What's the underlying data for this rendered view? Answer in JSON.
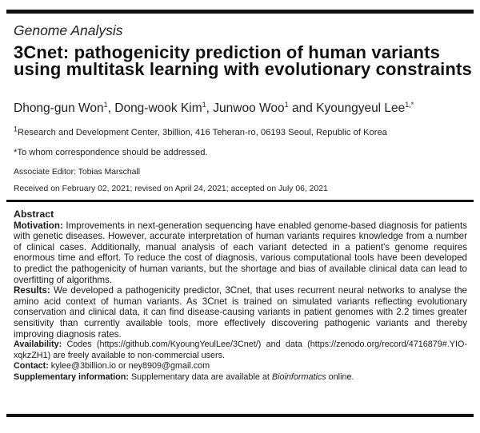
{
  "section_label": "Genome Analysis",
  "title": "3Cnet: pathogenicity prediction of human variants using multitask learning with evolutionary constraints",
  "authors": [
    {
      "name": "Dhong-gun Won",
      "sup": "1"
    },
    {
      "name": "Dong-wook Kim",
      "sup": "1"
    },
    {
      "name": "Junwoo Woo",
      "sup": "1"
    },
    {
      "name": "Kyoungyeul Lee",
      "sup": "1,*"
    }
  ],
  "author_sep": ", ",
  "author_and": " and ",
  "affiliation": {
    "sup": "1",
    "text": "Research and Development Center, 3billion, 416 Teheran-ro, 06193 Seoul, Republic of Korea"
  },
  "correspondence": "*To whom correspondence should be addressed.",
  "associate_editor": "Associate Editor: Tobias Marschall",
  "received": "Received on February 02, 2021; revised on April 24, 2021; accepted on July 06, 2021",
  "abstract": {
    "heading": "Abstract",
    "motivation_label": "Motivation:",
    "motivation": "Improvements in next-generation sequencing have enabled genome-based diagnosis for patients with genetic diseases. However, accurate interpretation of human variants requires knowledge from a number of clinical cases. Additionally, manual analysis of each variant detected in a patient's genome requires enormous time and effort. To reduce the cost of diagnosis, various computational tools have been developed to predict the pathogenicity of human variants, but the shortage and bias of available clinical data can lead to overfitting of algorithms.",
    "results_label": "Results:",
    "results": "We developed a pathogenicity predictor, 3Cnet, that uses recurrent neural networks to analyse the amino acid context of human variants. As 3Cnet is trained on simulated variants reflecting evolutionary conservation and clinical data, it can find disease-causing variants in patient genomes with 2.2 times greater sensitivity than currently available tools, more effectively discovering pathogenic variants and thereby improving diagnosis rates.",
    "availability_label": "Availability:",
    "availability": "Codes (https://github.com/KyoungYeulLee/3Cnet/) and data (https://zenodo.org/record/4716879#.YIO-xqkzZH1) are freely available to non-commercial users.",
    "contact_label": "Contact:",
    "contact": "kylee@3billion.io or ney8909@gmail.com",
    "supplementary_label": "Supplementary information:",
    "supplementary_prefix": "Supplementary data are available at ",
    "supplementary_journal": "Bioinformatics",
    "supplementary_suffix": " online."
  }
}
